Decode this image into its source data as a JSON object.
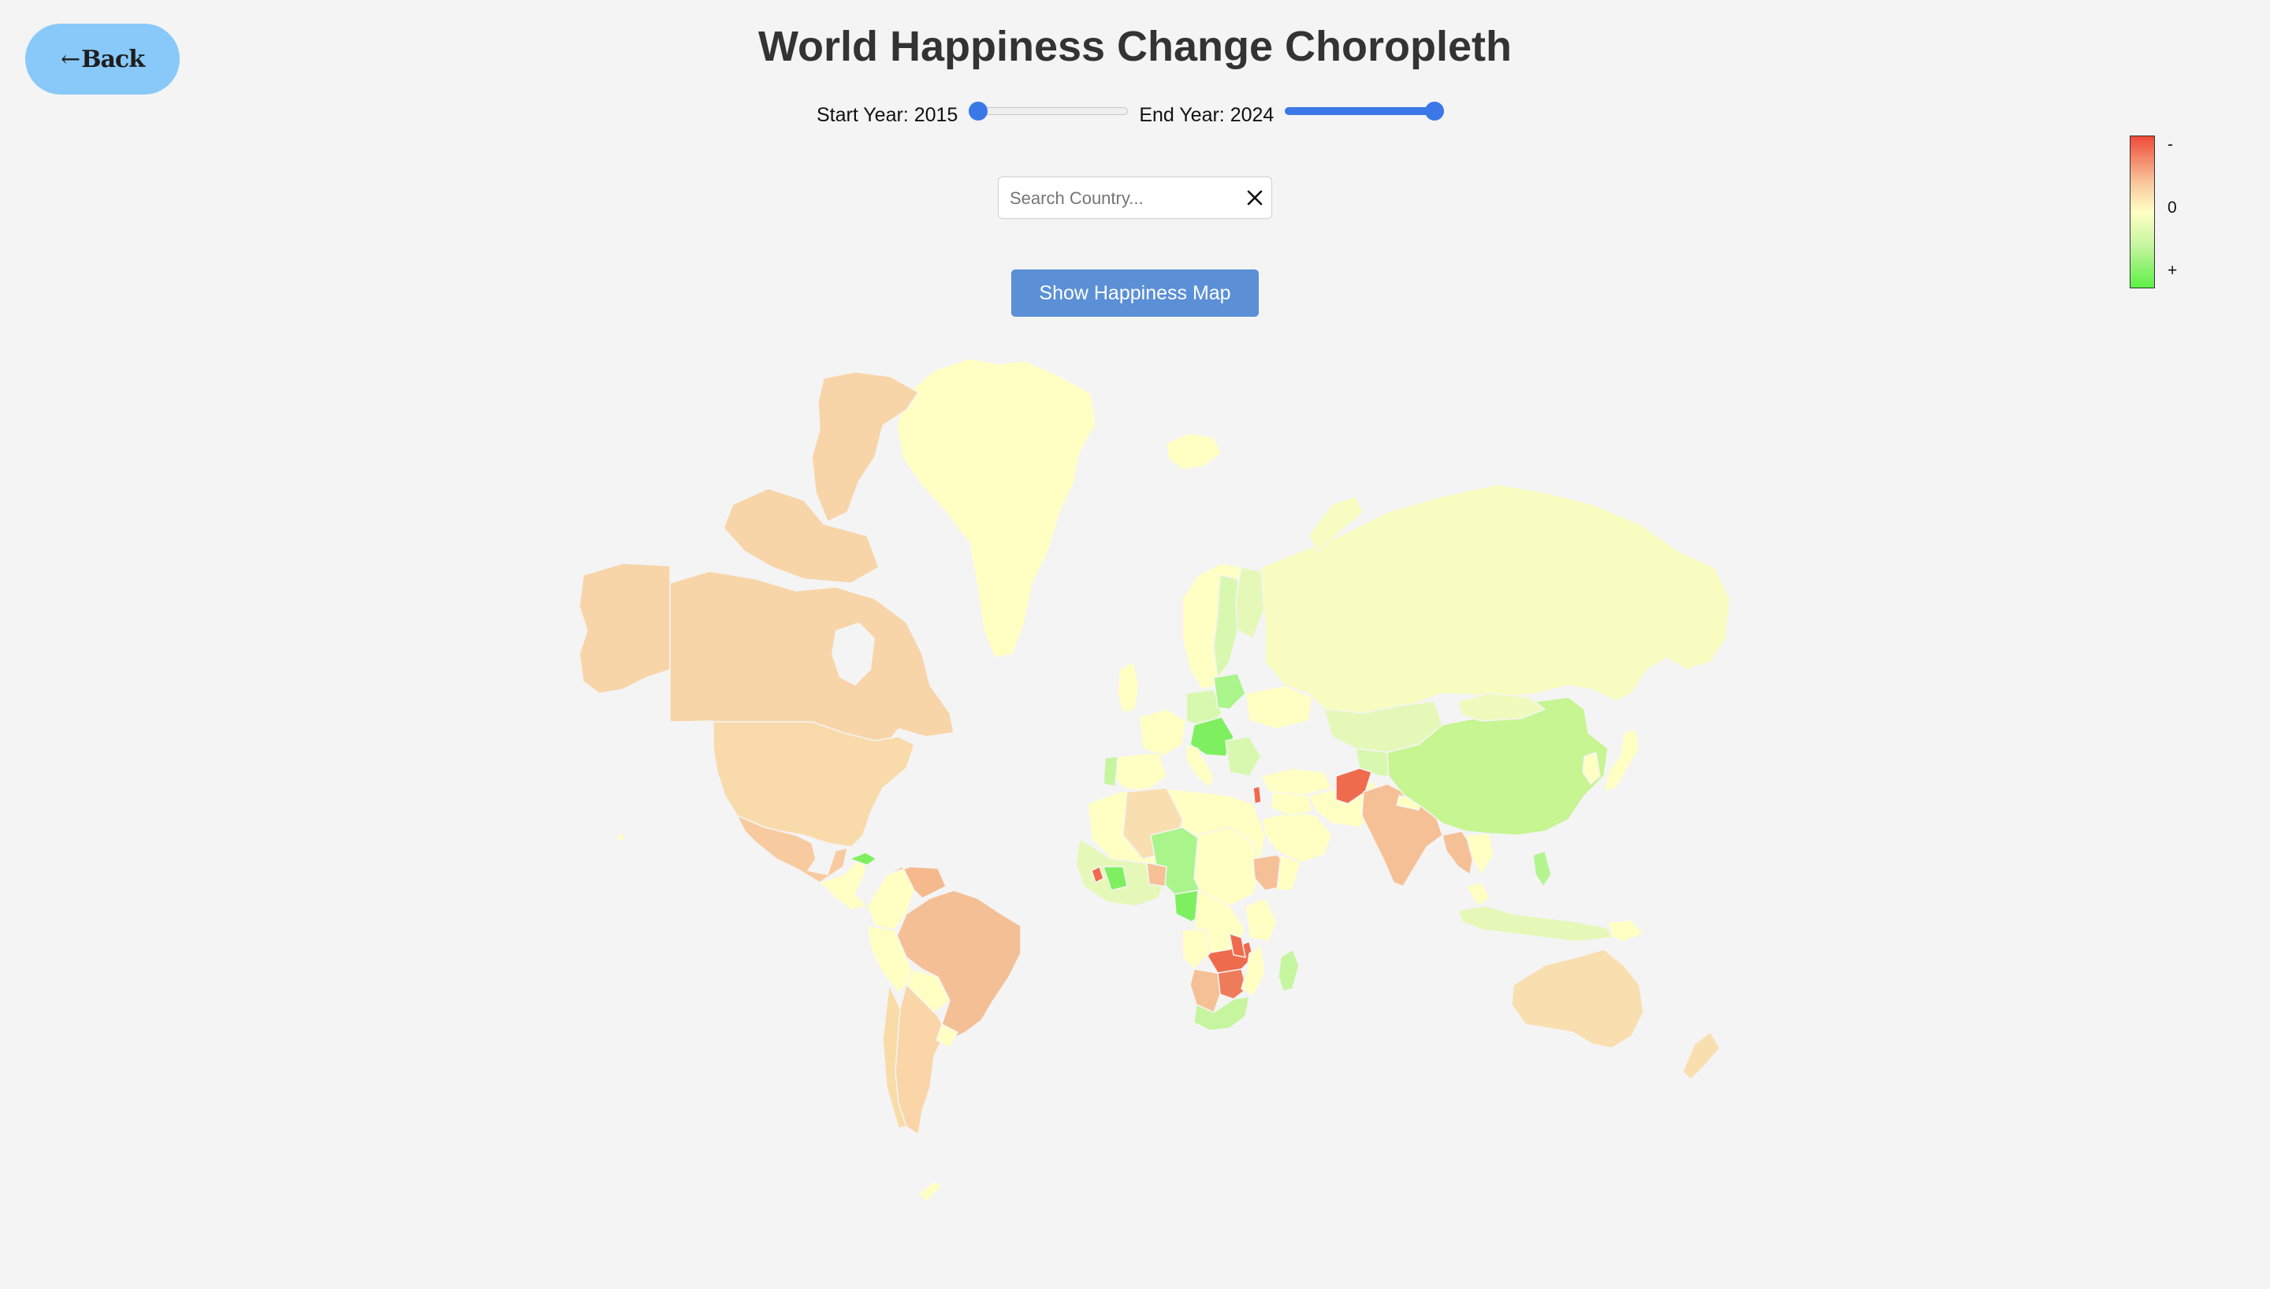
{
  "header": {
    "back_label": "Back",
    "title": "World Happiness Change Choropleth"
  },
  "controls": {
    "start_year_label": "Start Year: 2015",
    "end_year_label": "End Year: 2024",
    "start_year": 2015,
    "end_year": 2024,
    "start_slider_fraction": 0.0,
    "end_slider_fraction": 1.0,
    "search_placeholder": "Search Country...",
    "show_button_label": "Show Happiness Map"
  },
  "legend": {
    "top_label": "-",
    "mid_label": "0",
    "bottom_label": "+",
    "colors": [
      "#ef4a3a",
      "#f9c59a",
      "#ffffc4",
      "#c7f5a0",
      "#5df046"
    ]
  },
  "icons": {
    "back": "left-arrow-icon",
    "clear": "close-icon"
  }
}
